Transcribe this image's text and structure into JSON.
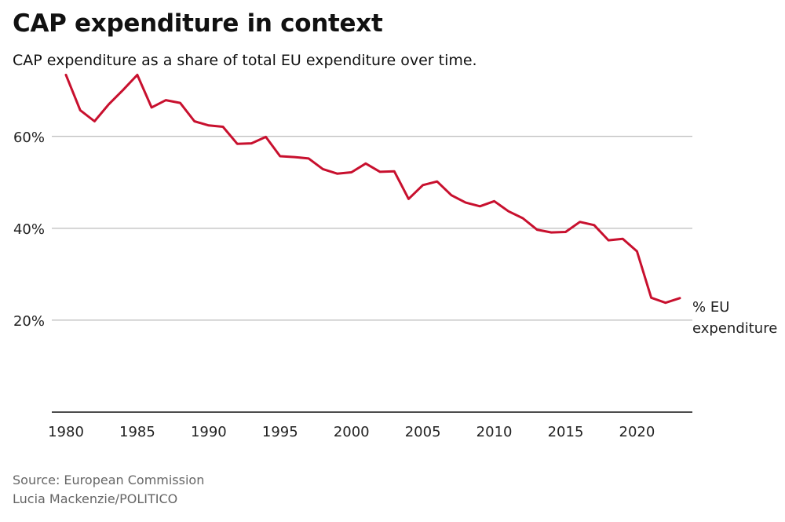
{
  "header": {
    "title": "CAP expenditure in context",
    "subtitle": "CAP expenditure as a share of total EU expenditure over time."
  },
  "footer": {
    "source": "Source: European Commission",
    "credit": "Lucia Mackenzie/POLITICO"
  },
  "colors": {
    "series": "#c8102e",
    "gridline": "#aaaaaa",
    "axis": "#111111"
  },
  "chart_data": {
    "type": "line",
    "title": "CAP expenditure in context",
    "subtitle": "CAP expenditure as a share of total EU expenditure over time.",
    "xlabel": "",
    "ylabel": "",
    "xlim": [
      1980,
      2023
    ],
    "ylim": [
      0,
      75
    ],
    "x_ticks": [
      1980,
      1985,
      1990,
      1995,
      2000,
      2005,
      2010,
      2015,
      2020
    ],
    "x_tick_labels": [
      "1980",
      "1985",
      "1990",
      "1995",
      "2000",
      "2005",
      "2010",
      "2015",
      "2020"
    ],
    "y_ticks": [
      20,
      40,
      60
    ],
    "y_tick_labels": [
      "20%",
      "40%",
      "60%"
    ],
    "grid": true,
    "series": [
      {
        "name": "% EU expenditure",
        "x": [
          1980,
          1981,
          1982,
          1983,
          1984,
          1985,
          1986,
          1987,
          1988,
          1989,
          1990,
          1991,
          1992,
          1993,
          1994,
          1995,
          1996,
          1997,
          1998,
          1999,
          2000,
          2001,
          2002,
          2003,
          2004,
          2005,
          2006,
          2007,
          2008,
          2009,
          2010,
          2011,
          2012,
          2013,
          2014,
          2015,
          2016,
          2017,
          2018,
          2019,
          2020,
          2021,
          2022,
          2023
        ],
        "values": [
          73.4,
          65.7,
          63.3,
          67.0,
          70.1,
          73.4,
          66.3,
          67.9,
          67.3,
          63.3,
          62.4,
          62.1,
          58.4,
          58.5,
          59.9,
          55.7,
          55.5,
          55.2,
          52.9,
          51.9,
          52.2,
          54.1,
          52.3,
          52.4,
          46.4,
          49.4,
          50.2,
          47.2,
          45.6,
          44.8,
          45.9,
          43.7,
          42.2,
          39.7,
          39.1,
          39.2,
          41.4,
          40.7,
          37.4,
          37.7,
          35.0,
          24.9,
          23.8,
          24.8
        ]
      }
    ]
  }
}
